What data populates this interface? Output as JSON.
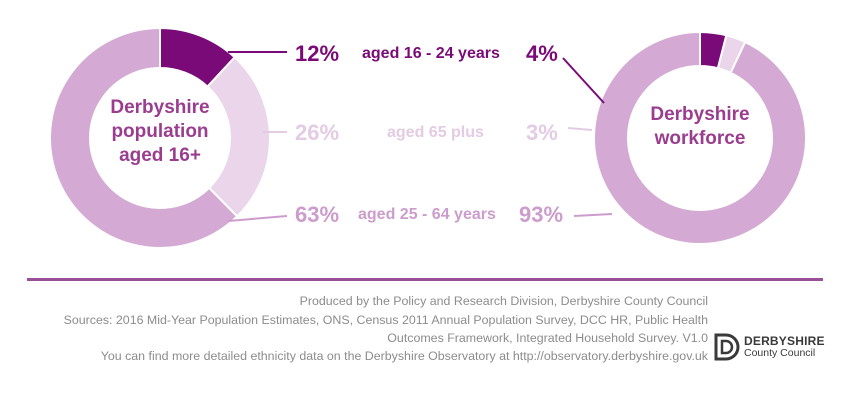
{
  "colors": {
    "dark": "#7a0a78",
    "light": "#ead5ea",
    "medium": "#d4aad4",
    "text_dark": "#7a0a78",
    "text_light": "#e4cbe4",
    "text_medium": "#cc9dcc",
    "center_text": "#9b3d8e",
    "divider": "#9b4f96"
  },
  "chart_data": [
    {
      "type": "pie",
      "subtype": "donut",
      "center_label_lines": [
        "Derbyshire",
        "population",
        "aged 16+"
      ],
      "categories": [
        "aged 16 - 24 years",
        "aged 65 plus",
        "aged 25 - 64 years"
      ],
      "values": [
        12,
        26,
        63
      ],
      "labels": [
        "12%",
        "26%",
        "63%"
      ]
    },
    {
      "type": "pie",
      "subtype": "donut",
      "center_label_lines": [
        "Derbyshire",
        "workforce"
      ],
      "categories": [
        "aged 16 - 24 years",
        "aged 65 plus",
        "aged 25 - 64 years"
      ],
      "values": [
        4,
        3,
        93
      ],
      "labels": [
        "4%",
        "3%",
        "93%"
      ]
    }
  ],
  "footer": {
    "line1": "Produced by the Policy and Research Division, Derbyshire County Council",
    "line2": "Sources: 2016 Mid-Year Population Estimates, ONS, Census 2011 Annual Population Survey, DCC HR, Public Health",
    "line3": "Outcomes Framework, Integrated Household Survey. V1.0",
    "line4": "You can find more detailed ethnicity data on the Derbyshire Observatory at http://observatory.derbyshire.gov.uk"
  },
  "logo": {
    "name_line1": "DERBYSHIRE",
    "name_line2": "County Council"
  }
}
